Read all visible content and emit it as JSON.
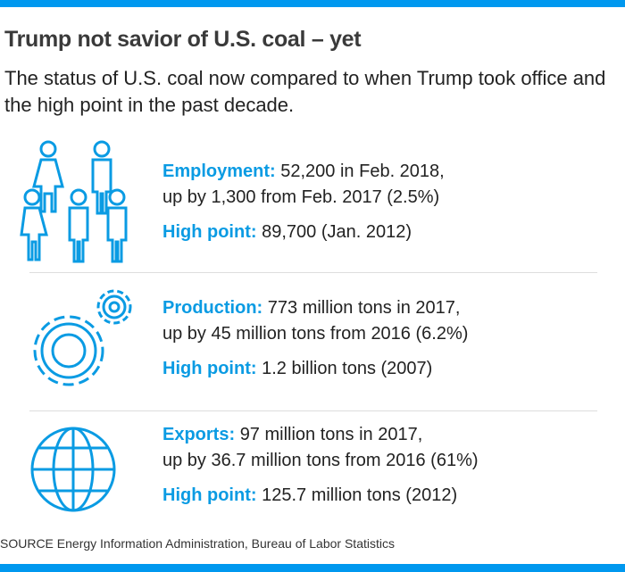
{
  "title": "Trump not savior of U.S. coal – yet",
  "subtitle": "The status of U.S. coal now compared to when Trump took office and the high point in the past decade.",
  "accent_color": "#0098ef",
  "sections": [
    {
      "icon": "people-icon",
      "label": "Employment:",
      "line1": "52,200 in Feb. 2018,",
      "line2": "up by 1,300 from Feb. 2017 (2.5%)",
      "high_label": "High point:",
      "high_value": "89,700 (Jan. 2012)"
    },
    {
      "icon": "gears-icon",
      "label": "Production:",
      "line1": "773 million tons in 2017,",
      "line2": "up by 45 million tons from 2016 (6.2%)",
      "high_label": "High point:",
      "high_value": "1.2 billion tons (2007)"
    },
    {
      "icon": "globe-icon",
      "label": "Exports:",
      "line1": "97 million tons in 2017,",
      "line2": "up by 36.7 million tons from 2016 (61%)",
      "high_label": "High point:",
      "high_value": "125.7 million tons (2012)"
    }
  ],
  "source": "SOURCE Energy Information Administration, Bureau of Labor Statistics"
}
